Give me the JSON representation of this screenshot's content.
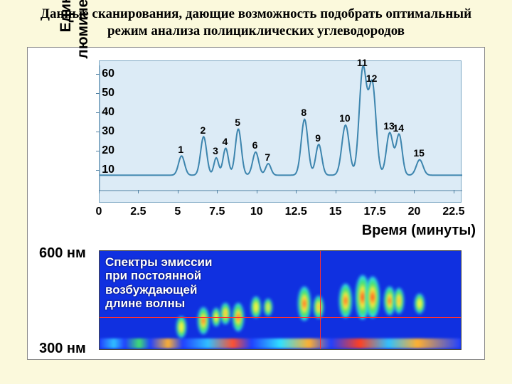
{
  "title": "Данные сканирования, дающие возможность подобрать оптимальный режим анализа полициклических углеводородов",
  "title_fontsize": 19,
  "bg_color": "#fbf9dc",
  "figure_border": "#8a8a8a",
  "chrom": {
    "bg": "#dcebf6",
    "ylabel": "Единицы\nлюминесценции",
    "xlabel": "Время (минуты)",
    "xlim": [
      0,
      23
    ],
    "ylim": [
      0,
      65
    ],
    "yticks": [
      10,
      20,
      30,
      40,
      50,
      60
    ],
    "xticks": [
      0,
      2.5,
      5,
      7.5,
      10,
      12.5,
      15,
      17.5,
      20,
      22.5
    ],
    "baseline": 8,
    "line_color": "#3d85ae",
    "line_width": 2,
    "peaks": [
      {
        "n": 1,
        "t": 5.2,
        "h": 18,
        "w": 0.45
      },
      {
        "n": 2,
        "t": 6.6,
        "h": 28,
        "w": 0.45
      },
      {
        "n": 3,
        "t": 7.4,
        "h": 17,
        "w": 0.35
      },
      {
        "n": 4,
        "t": 8.0,
        "h": 22,
        "w": 0.4
      },
      {
        "n": 5,
        "t": 8.8,
        "h": 32,
        "w": 0.45
      },
      {
        "n": 6,
        "t": 9.9,
        "h": 20,
        "w": 0.45
      },
      {
        "n": 7,
        "t": 10.7,
        "h": 14,
        "w": 0.4
      },
      {
        "n": 8,
        "t": 13.0,
        "h": 37,
        "w": 0.5
      },
      {
        "n": 9,
        "t": 13.9,
        "h": 24,
        "w": 0.45
      },
      {
        "n": 10,
        "t": 15.6,
        "h": 34,
        "w": 0.55
      },
      {
        "n": 11,
        "t": 16.7,
        "h": 63,
        "w": 0.55
      },
      {
        "n": 12,
        "t": 17.3,
        "h": 55,
        "w": 0.55
      },
      {
        "n": 13,
        "t": 18.4,
        "h": 30,
        "w": 0.5
      },
      {
        "n": 14,
        "t": 19.0,
        "h": 29,
        "w": 0.45
      },
      {
        "n": 15,
        "t": 20.3,
        "h": 16,
        "w": 0.5
      }
    ]
  },
  "heatmap": {
    "bg": "#1030e0",
    "title": "Спектры эмиссии\nпри постоянной\nвозбуждающей\nдлине волны",
    "ylabels": {
      "top": "600 нм",
      "bottom": "300 нм"
    },
    "xlim": [
      0,
      23
    ],
    "ylim_nm": [
      300,
      600
    ],
    "crosshair": {
      "t": 14.0,
      "nm": 400
    },
    "blobs": [
      {
        "t": 5.2,
        "nm": 370,
        "w": 14,
        "h": 30,
        "c": "#30e0ff",
        "core": "#e0ff40"
      },
      {
        "t": 6.6,
        "nm": 390,
        "w": 16,
        "h": 38,
        "c": "#30e0ff",
        "core": "#ff4020"
      },
      {
        "t": 7.4,
        "nm": 400,
        "w": 12,
        "h": 26,
        "c": "#30e0ff",
        "core": "#e0ff40"
      },
      {
        "t": 8.0,
        "nm": 410,
        "w": 14,
        "h": 30,
        "c": "#30e0ff",
        "core": "#ffb030"
      },
      {
        "t": 8.8,
        "nm": 400,
        "w": 16,
        "h": 40,
        "c": "#30e0ff",
        "core": "#ff4020"
      },
      {
        "t": 9.9,
        "nm": 430,
        "w": 14,
        "h": 30,
        "c": "#30e0ff",
        "core": "#e0ff40"
      },
      {
        "t": 10.7,
        "nm": 430,
        "w": 12,
        "h": 24,
        "c": "#30e0ff",
        "core": "#80f080"
      },
      {
        "t": 13.0,
        "nm": 440,
        "w": 18,
        "h": 48,
        "c": "#30e0ff",
        "core": "#ff4020"
      },
      {
        "t": 13.9,
        "nm": 430,
        "w": 14,
        "h": 32,
        "c": "#30e0ff",
        "core": "#ffb030"
      },
      {
        "t": 15.6,
        "nm": 450,
        "w": 18,
        "h": 48,
        "c": "#30e0ff",
        "core": "#ff4020"
      },
      {
        "t": 16.7,
        "nm": 460,
        "w": 20,
        "h": 62,
        "c": "#30e0ff",
        "core": "#ff2010"
      },
      {
        "t": 17.3,
        "nm": 460,
        "w": 20,
        "h": 58,
        "c": "#30e0ff",
        "core": "#ff2010"
      },
      {
        "t": 18.4,
        "nm": 450,
        "w": 16,
        "h": 40,
        "c": "#30e0ff",
        "core": "#ff4020"
      },
      {
        "t": 19.0,
        "nm": 450,
        "w": 14,
        "h": 36,
        "c": "#30e0ff",
        "core": "#ffb030"
      },
      {
        "t": 20.3,
        "nm": 440,
        "w": 14,
        "h": 28,
        "c": "#30e0ff",
        "core": "#e0ff40"
      }
    ],
    "noise_strip": {
      "nm": 320,
      "h": 14
    }
  }
}
